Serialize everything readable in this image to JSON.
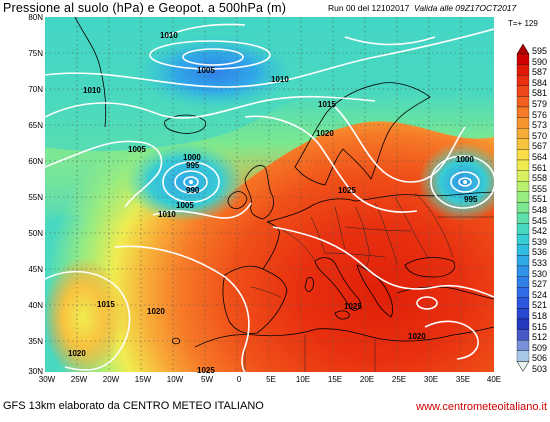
{
  "header": {
    "title": "Pressione al suolo (hPa) e Geopot. a 500hPa (m)",
    "run": "Run 00 del 12102017",
    "valid": "Valida alle 09Z17OCT2017",
    "timestep": "T=+ 129"
  },
  "axes": {
    "lat_labels": [
      "80N",
      "75N",
      "70N",
      "65N",
      "60N",
      "55N",
      "50N",
      "45N",
      "40N",
      "35N",
      "30N"
    ],
    "lon_labels": [
      "30W",
      "25W",
      "20W",
      "15W",
      "10W",
      "5W",
      "0",
      "5E",
      "10E",
      "15E",
      "20E",
      "25E",
      "30E",
      "35E",
      "40E"
    ]
  },
  "colorbar": {
    "values": [
      "595",
      "590",
      "587",
      "584",
      "581",
      "579",
      "576",
      "573",
      "570",
      "567",
      "564",
      "561",
      "558",
      "555",
      "551",
      "548",
      "545",
      "542",
      "539",
      "536",
      "533",
      "530",
      "527",
      "524",
      "521",
      "518",
      "515",
      "512",
      "509",
      "506",
      "503"
    ],
    "colors": [
      "#b00000",
      "#d00000",
      "#e01808",
      "#e83010",
      "#ee4818",
      "#f26020",
      "#f67a28",
      "#f89430",
      "#f8ac38",
      "#f8c440",
      "#f8dc48",
      "#f0ec50",
      "#d8f060",
      "#b8f070",
      "#98ec80",
      "#7ce890",
      "#60e0a8",
      "#48d8c0",
      "#38ccd4",
      "#30bce0",
      "#30a8e8",
      "#3094e8",
      "#3080e8",
      "#306ce8",
      "#2c58e0",
      "#2848d0",
      "#2438c0",
      "#4858c8",
      "#7890d8",
      "#a8c8e8",
      "#e8f4f0"
    ]
  },
  "isobar_labels": [
    {
      "text": "1010"
    },
    {
      "text": "1005"
    },
    {
      "text": "1010"
    },
    {
      "text": "1010"
    },
    {
      "text": "1015"
    },
    {
      "text": "1020"
    },
    {
      "text": "1005"
    },
    {
      "text": "1000"
    },
    {
      "text": "995"
    },
    {
      "text": "990"
    },
    {
      "text": "1005"
    },
    {
      "text": "1010"
    },
    {
      "text": "1025"
    },
    {
      "text": "1000"
    },
    {
      "text": "995"
    },
    {
      "text": "1015"
    },
    {
      "text": "1020"
    },
    {
      "text": "1025"
    },
    {
      "text": "1020"
    },
    {
      "text": "1020"
    },
    {
      "text": "1025"
    }
  ],
  "footer": {
    "credit": "GFS 13km elaborato da CENTRO METEO ITALIANO",
    "website": "www.centrometeoitaliano.it"
  }
}
